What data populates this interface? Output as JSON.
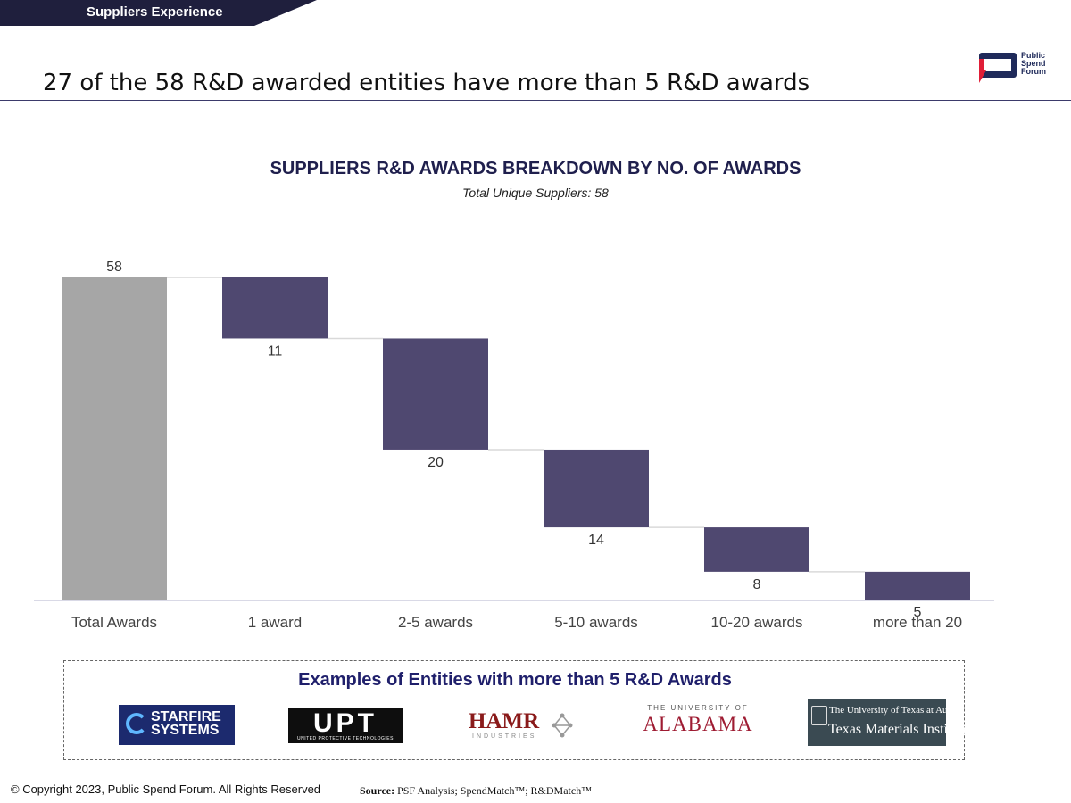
{
  "header": {
    "section_label": "Suppliers Experience",
    "headline": "27 of the 58 R&D awarded entities have more than 5 R&D awards",
    "logo_text": [
      "Public",
      "Spend",
      "Forum"
    ]
  },
  "colors": {
    "total_bar": "#a6a6a6",
    "step_bar": "#4f4870",
    "section_tab": "#1f1f3d",
    "connector": "#d9d9d9",
    "axis": "#d9d9e6"
  },
  "chart_data": {
    "type": "bar",
    "subtype": "waterfall",
    "title": "SUPPLIERS R&D AWARDS BREAKDOWN BY NO. OF AWARDS",
    "subtitle": "Total Unique Suppliers: 58",
    "categories": [
      "Total Awards",
      "1 award",
      "2-5 awards",
      "5-10 awards",
      "10-20 awards",
      "more than 20"
    ],
    "values": [
      58,
      11,
      20,
      14,
      8,
      5
    ],
    "total_index": 0,
    "ylim": [
      0,
      58
    ],
    "grid": false,
    "legend": "none"
  },
  "examples": {
    "title": "Examples of Entities with more than 5 R&D Awards",
    "logos": [
      {
        "name": "starfire-systems-logo",
        "lines": [
          "STARFIRE",
          "SYSTEMS"
        ]
      },
      {
        "name": "upt-logo",
        "lines": [
          "UPT",
          "UNITED PROTECTIVE TECHNOLOGIES"
        ]
      },
      {
        "name": "hamr-logo",
        "lines": [
          "HAMR",
          "INDUSTRIES"
        ]
      },
      {
        "name": "alabama-logo",
        "lines": [
          "THE UNIVERSITY OF",
          "ALABAMA"
        ]
      },
      {
        "name": "texas-materials-logo",
        "lines": [
          "The University of Texas at Austin",
          "Texas Materials Institute"
        ]
      }
    ]
  },
  "footer": {
    "copyright": "© Copyright 2023, Public Spend Forum. All Rights Reserved",
    "source_label": "Source:",
    "source_text": " PSF Analysis; SpendMatch™; R&DMatch™"
  }
}
